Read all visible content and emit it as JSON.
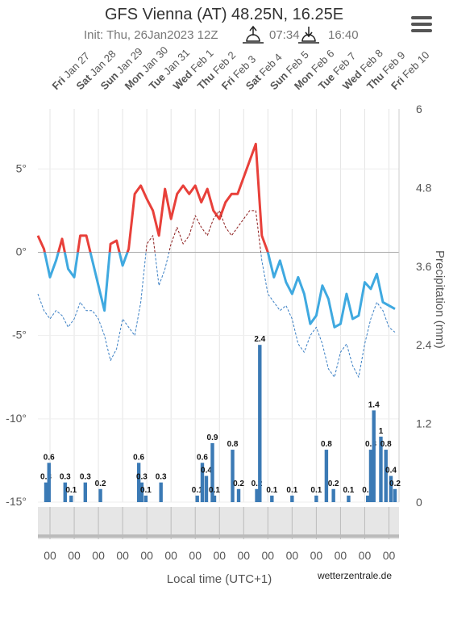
{
  "chart_data": {
    "type": "line",
    "title": "GFS Vienna (AT) 48.25N, 16.25E",
    "subtitle": "Init: Thu, 26Jan2023 12Z",
    "sunrise": "07:34",
    "sunset": "16:40",
    "days": [
      {
        "weekday": "Fri",
        "date": "Jan 27"
      },
      {
        "weekday": "Sat",
        "date": "Jan 28"
      },
      {
        "weekday": "Sun",
        "date": "Jan 29"
      },
      {
        "weekday": "Mon",
        "date": "Jan 30"
      },
      {
        "weekday": "Tue",
        "date": "Jan 31"
      },
      {
        "weekday": "Wed",
        "date": "Feb 1"
      },
      {
        "weekday": "Thu",
        "date": "Feb 2"
      },
      {
        "weekday": "Fri",
        "date": "Feb 3"
      },
      {
        "weekday": "Sat",
        "date": "Feb 4"
      },
      {
        "weekday": "Sun",
        "date": "Feb 5"
      },
      {
        "weekday": "Mon",
        "date": "Feb 6"
      },
      {
        "weekday": "Tue",
        "date": "Feb 7"
      },
      {
        "weekday": "Wed",
        "date": "Feb 8"
      },
      {
        "weekday": "Thu",
        "date": "Feb 9"
      },
      {
        "weekday": "Fri",
        "date": "Feb 10"
      }
    ],
    "xlabel": "Local time (UTC+1)",
    "source": "wetterzentrale.de",
    "y2label": "Precipitation (mm)",
    "xlim": [
      -12,
      346
    ],
    "xticks": [
      {
        "value": 0,
        "label": "00"
      },
      {
        "value": 24,
        "label": "00"
      },
      {
        "value": 48,
        "label": "00"
      },
      {
        "value": 72,
        "label": "00"
      },
      {
        "value": 96,
        "label": "00"
      },
      {
        "value": 120,
        "label": "00"
      },
      {
        "value": 144,
        "label": "00"
      },
      {
        "value": 168,
        "label": "00"
      },
      {
        "value": 192,
        "label": "00"
      },
      {
        "value": 216,
        "label": "00"
      },
      {
        "value": 240,
        "label": "00"
      },
      {
        "value": 264,
        "label": "00"
      },
      {
        "value": 288,
        "label": "00"
      },
      {
        "value": 312,
        "label": "00"
      },
      {
        "value": 336,
        "label": "00"
      }
    ],
    "ylim": [
      -15,
      8.6
    ],
    "yticks": [
      {
        "value": -15,
        "label": "-15°"
      },
      {
        "value": -10,
        "label": "-10°"
      },
      {
        "value": -5,
        "label": "-5°"
      },
      {
        "value": 0,
        "label": "0°"
      },
      {
        "value": 5,
        "label": "5°"
      }
    ],
    "y2lim": [
      0,
      6
    ],
    "y2ticks": [
      0,
      1.2,
      2.4,
      3.6,
      4.8,
      6
    ],
    "grid": true,
    "x": [
      -12,
      -6,
      0,
      6,
      12,
      18,
      24,
      30,
      36,
      42,
      48,
      54,
      60,
      66,
      72,
      78,
      84,
      90,
      96,
      102,
      108,
      114,
      120,
      126,
      132,
      138,
      144,
      150,
      156,
      162,
      168,
      174,
      180,
      186,
      192,
      198,
      204,
      210,
      216,
      222,
      228,
      234,
      240,
      246,
      252,
      258,
      264,
      270,
      276,
      282,
      288,
      294,
      300,
      306,
      312,
      318,
      324,
      330,
      336,
      342
    ],
    "series": [
      {
        "color": "#e8403a",
        "color_below": "#3fa9e0",
        "width": 3,
        "dashed": false,
        "values": [
          1,
          0.2,
          -1.5,
          -0.5,
          0.8,
          -1,
          -1.5,
          1,
          1,
          -0.5,
          -2,
          -3.5,
          0.5,
          0.7,
          -0.8,
          0.2,
          3.5,
          4,
          3.2,
          2.5,
          1,
          3.8,
          2,
          3.5,
          4,
          3.5,
          4,
          3,
          3.8,
          2.5,
          2,
          3,
          3.5,
          3.5,
          4.5,
          5.5,
          6.5,
          1,
          0,
          -1.5,
          -0.5,
          -1.8,
          -2.5,
          -1.5,
          -2.5,
          -4.3,
          -3.8,
          -2,
          -2.8,
          -4.5,
          -4.3,
          -2.5,
          -4,
          -3.8,
          -1.8,
          -2.2,
          -1.3,
          -3,
          -3.2,
          -3.4
        ]
      },
      {
        "color": "#8b1a1a",
        "color_below": "#3a7fc4",
        "width": 1,
        "dashed": true,
        "values": [
          -2.5,
          -3.5,
          -4,
          -3.5,
          -3.8,
          -4.5,
          -4,
          -3,
          -3.5,
          -3.5,
          -4,
          -5,
          -6.5,
          -5.8,
          -4,
          -4.5,
          -5,
          -3,
          0.5,
          1,
          -2,
          -1,
          0.5,
          1.5,
          0.5,
          1,
          2.2,
          1.5,
          1,
          2,
          2.5,
          1.5,
          1,
          1.5,
          2,
          2.5,
          2.5,
          -0.5,
          -2.5,
          -3,
          -3.5,
          -3.2,
          -4,
          -5.5,
          -6,
          -5,
          -4.5,
          -5.5,
          -7,
          -7.5,
          -6,
          -5.5,
          -6.8,
          -7.5,
          -5.5,
          -4,
          -3,
          -3.5,
          -4.5,
          -4.8
        ]
      }
    ],
    "precipitation": {
      "axis": "y2",
      "color": "#3b7ab5",
      "x": [
        -4,
        -1,
        15,
        21,
        35,
        50,
        88,
        91,
        95,
        110,
        146,
        151,
        155,
        161,
        163,
        181,
        187,
        205,
        208,
        220,
        240,
        264,
        274,
        281,
        296,
        315,
        318,
        321,
        328,
        333,
        338,
        342
      ],
      "values": [
        0.3,
        0.6,
        0.3,
        0.1,
        0.3,
        0.2,
        0.6,
        0.3,
        0.1,
        0.3,
        0.1,
        0.6,
        0.4,
        0.9,
        0.1,
        0.8,
        0.2,
        0.2,
        2.4,
        0.1,
        0.1,
        0.1,
        0.8,
        0.2,
        0.1,
        0.1,
        0.8,
        1.4,
        1.0,
        0.8,
        0.4,
        0.2
      ]
    }
  }
}
